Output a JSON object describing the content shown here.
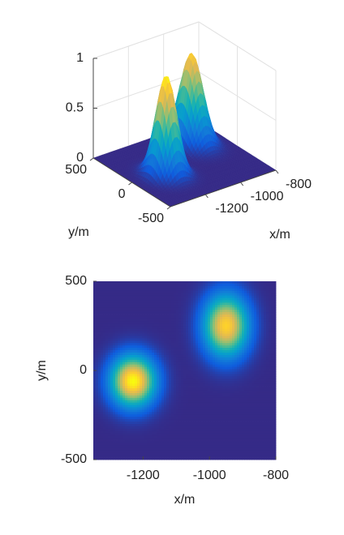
{
  "chart_data": [
    {
      "type": "surface3d",
      "xlabel": "x/m",
      "ylabel": "y/m",
      "xlim": [
        -1400,
        -800
      ],
      "xticks": [
        -1200,
        -1000,
        -800
      ],
      "ylim": [
        -500,
        500
      ],
      "yticks": [
        -500,
        0,
        500
      ],
      "zlim": [
        0,
        1
      ],
      "zticks": [
        0,
        0.5,
        1
      ],
      "peaks": [
        {
          "x": -1230,
          "y": -60,
          "height": 1,
          "sx": 45,
          "sy": 95
        },
        {
          "x": -950,
          "y": 250,
          "height": 0.9,
          "sx": 45,
          "sy": 115
        }
      ]
    },
    {
      "type": "heatmap",
      "xlabel": "x/m",
      "ylabel": "y/m",
      "xlim": [
        -1350,
        -800
      ],
      "xticks": [
        -1200,
        -1000,
        -800
      ],
      "ylim": [
        -500,
        500
      ],
      "yticks": [
        -500,
        0,
        500
      ],
      "peaks": [
        {
          "x": -1230,
          "y": -60,
          "height": 1,
          "sx": 45,
          "sy": 95
        },
        {
          "x": -950,
          "y": 250,
          "height": 0.9,
          "sx": 45,
          "sy": 115
        }
      ]
    }
  ]
}
